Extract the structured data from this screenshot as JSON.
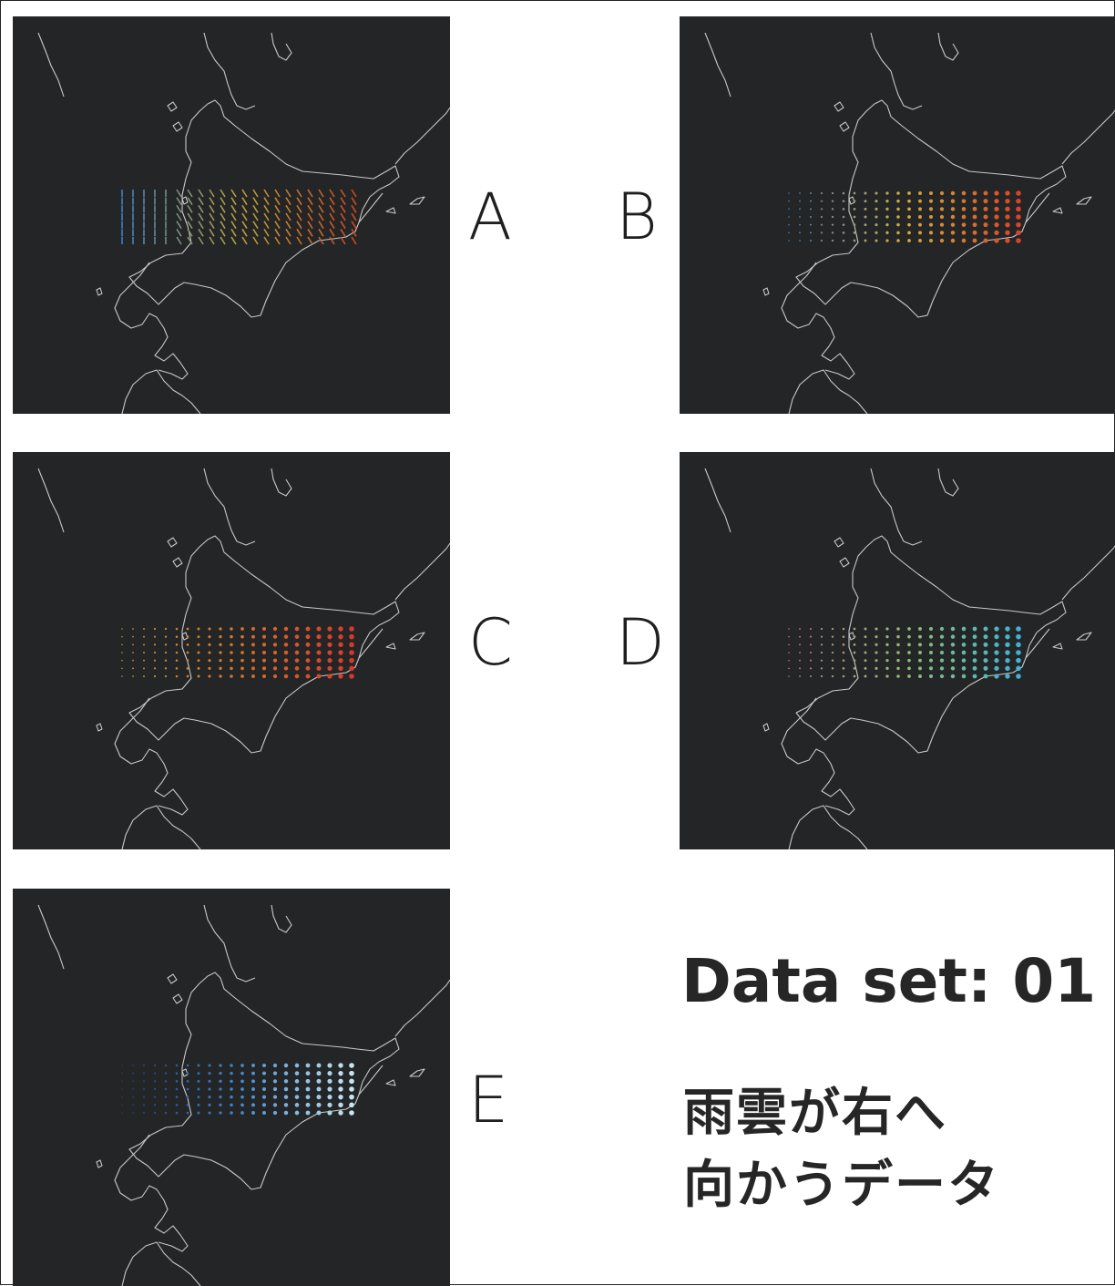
{
  "panels": [
    {
      "id": "A",
      "label": "A",
      "glyph": "line",
      "colors": [
        "#3f7fc8",
        "#b9a33a",
        "#d04a25"
      ]
    },
    {
      "id": "B",
      "label": "B",
      "glyph": "dot",
      "colors": [
        "#3f7fc8",
        "#d6b039",
        "#d8432a"
      ]
    },
    {
      "id": "C",
      "label": "C",
      "glyph": "dot",
      "colors": [
        "#b7972d",
        "#d9742f",
        "#d8382a"
      ]
    },
    {
      "id": "D",
      "label": "D",
      "glyph": "dot",
      "colors": [
        "#c77b8a",
        "#8fbf6d",
        "#3fb2d6"
      ]
    },
    {
      "id": "E",
      "label": "E",
      "glyph": "dot",
      "colors": [
        "#1d3e73",
        "#3f86cf",
        "#c6e7f2"
      ]
    }
  ],
  "title": "Data set: 01",
  "subtitle_lines": [
    "雨雲が右へ",
    "向かうデータ"
  ]
}
